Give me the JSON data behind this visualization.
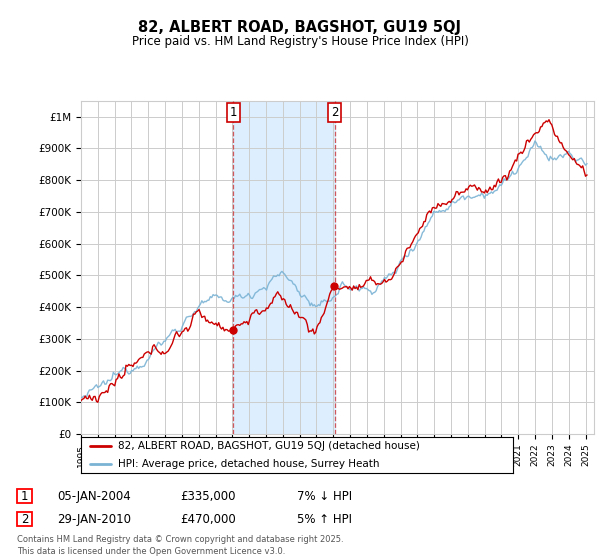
{
  "title": "82, ALBERT ROAD, BAGSHOT, GU19 5QJ",
  "subtitle": "Price paid vs. HM Land Registry's House Price Index (HPI)",
  "ylim": [
    0,
    1050000
  ],
  "yticks": [
    0,
    100000,
    200000,
    300000,
    400000,
    500000,
    600000,
    700000,
    800000,
    900000,
    1000000
  ],
  "ytick_labels": [
    "£0",
    "£100K",
    "£200K",
    "£300K",
    "£400K",
    "£500K",
    "£600K",
    "£700K",
    "£800K",
    "£900K",
    "£1M"
  ],
  "x_start_year": 1995,
  "x_end_year": 2025,
  "hpi_color": "#7ab3d4",
  "price_color": "#cc0000",
  "shaded_color": "#ddeeff",
  "marker1_year": 2004.05,
  "marker2_year": 2010.08,
  "transaction1_price_val": 335000,
  "transaction2_price_val": 470000,
  "transaction1_label": "05-JAN-2004",
  "transaction1_price": "£335,000",
  "transaction1_note": "7% ↓ HPI",
  "transaction2_label": "29-JAN-2010",
  "transaction2_price": "£470,000",
  "transaction2_note": "5% ↑ HPI",
  "legend_line1": "82, ALBERT ROAD, BAGSHOT, GU19 5QJ (detached house)",
  "legend_line2": "HPI: Average price, detached house, Surrey Heath",
  "footer": "Contains HM Land Registry data © Crown copyright and database right 2025.\nThis data is licensed under the Open Government Licence v3.0.",
  "background_color": "#ffffff",
  "grid_color": "#cccccc"
}
